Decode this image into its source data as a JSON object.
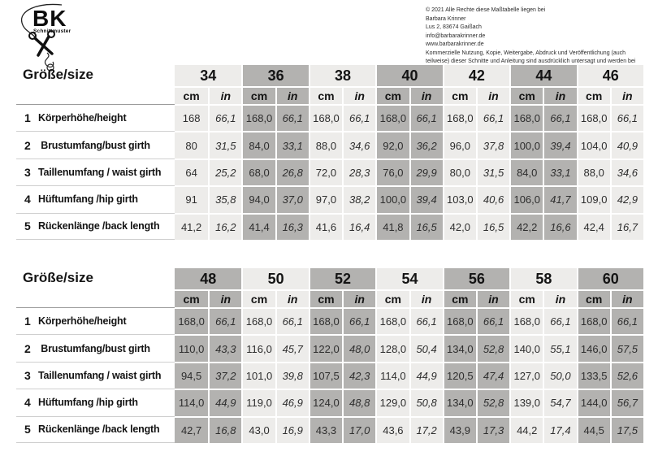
{
  "logo": {
    "brand": "BK",
    "subtitle": "Schnittmuster"
  },
  "copyright_lines": [
    "© 2021 Alle Rechte diese Maßtabelle liegen bei",
    "Barbara Krinner",
    "Lus 2, 83674 Gaißach",
    "info@barbarakrinner.de",
    "www.barbarakrinner.de",
    "Kommerzielle Nutzung, Kopie, Weitergabe, Abdruck und Veröffentlichung (auch teilweise) dieser Schnitte und Anleitung sind ausdrücklich untersagt und werden bei Missachtung strafrechtlich verfolgt."
  ],
  "colors": {
    "band_light": "#edecea",
    "band_dark": "#b3b2b0"
  },
  "units": {
    "cm": "cm",
    "in": "in"
  },
  "size_tables": [
    {
      "name": "sizes-34-46",
      "corner_label": "Größe/size",
      "first_band": "light",
      "sizes": [
        "34",
        "36",
        "38",
        "40",
        "42",
        "44",
        "46"
      ],
      "rows": [
        {
          "num": "1",
          "label": "Körperhöhe/height",
          "cm": [
            "168",
            "168,0",
            "168,0",
            "168,0",
            "168,0",
            "168,0",
            "168,0"
          ],
          "in": [
            "66,1",
            "66,1",
            "66,1",
            "66,1",
            "66,1",
            "66,1",
            "66,1"
          ]
        },
        {
          "num": "2",
          "label": " Brustumfang/bust girth",
          "cm": [
            "80",
            "84,0",
            "88,0",
            "92,0",
            "96,0",
            "100,0",
            "104,0"
          ],
          "in": [
            "31,5",
            "33,1",
            "34,6",
            "36,2",
            "37,8",
            "39,4",
            "40,9"
          ]
        },
        {
          "num": "3",
          "label": "Taillenumfang / waist girth",
          "cm": [
            "64",
            "68,0",
            "72,0",
            "76,0",
            "80,0",
            "84,0",
            "88,0"
          ],
          "in": [
            "25,2",
            "26,8",
            "28,3",
            "29,9",
            "31,5",
            "33,1",
            "34,6"
          ]
        },
        {
          "num": "4",
          "label": "Hüftumfang /hip girth",
          "cm": [
            "91",
            "94,0",
            "97,0",
            "100,0",
            "103,0",
            "106,0",
            "109,0"
          ],
          "in": [
            "35,8",
            "37,0",
            "38,2",
            "39,4",
            "40,6",
            "41,7",
            "42,9"
          ]
        },
        {
          "num": "5",
          "label": "Rückenlänge /back length",
          "cm": [
            "41,2",
            "41,4",
            "41,6",
            "41,8",
            "42,0",
            "42,2",
            "42,4"
          ],
          "in": [
            "16,2",
            "16,3",
            "16,4",
            "16,5",
            "16,5",
            "16,6",
            "16,7"
          ]
        }
      ]
    },
    {
      "name": "sizes-48-60",
      "corner_label": "Größe/size",
      "first_band": "dark",
      "sizes": [
        "48",
        "50",
        "52",
        "54",
        "56",
        "58",
        "60"
      ],
      "rows": [
        {
          "num": "1",
          "label": "Körperhöhe/height",
          "cm": [
            "168,0",
            "168,0",
            "168,0",
            "168,0",
            "168,0",
            "168,0",
            "168,0"
          ],
          "in": [
            "66,1",
            "66,1",
            "66,1",
            "66,1",
            "66,1",
            "66,1",
            "66,1"
          ]
        },
        {
          "num": "2",
          "label": " Brustumfang/bust girth",
          "cm": [
            "110,0",
            "116,0",
            "122,0",
            "128,0",
            "134,0",
            "140,0",
            "146,0"
          ],
          "in": [
            "43,3",
            "45,7",
            "48,0",
            "50,4",
            "52,8",
            "55,1",
            "57,5"
          ]
        },
        {
          "num": "3",
          "label": "Taillenumfang / waist girth",
          "cm": [
            "94,5",
            "101,0",
            "107,5",
            "114,0",
            "120,5",
            "127,0",
            "133,5"
          ],
          "in": [
            "37,2",
            "39,8",
            "42,3",
            "44,9",
            "47,4",
            "50,0",
            "52,6"
          ]
        },
        {
          "num": "4",
          "label": "Hüftumfang /hip girth",
          "cm": [
            "114,0",
            "119,0",
            "124,0",
            "129,0",
            "134,0",
            "139,0",
            "144,0"
          ],
          "in": [
            "44,9",
            "46,9",
            "48,8",
            "50,8",
            "52,8",
            "54,7",
            "56,7"
          ]
        },
        {
          "num": "5",
          "label": "Rückenlänge /back length",
          "cm": [
            "42,7",
            "43,0",
            "43,3",
            "43,6",
            "43,9",
            "44,2",
            "44,5"
          ],
          "in": [
            "16,8",
            "16,9",
            "17,0",
            "17,2",
            "17,3",
            "17,4",
            "17,5"
          ]
        }
      ]
    }
  ]
}
